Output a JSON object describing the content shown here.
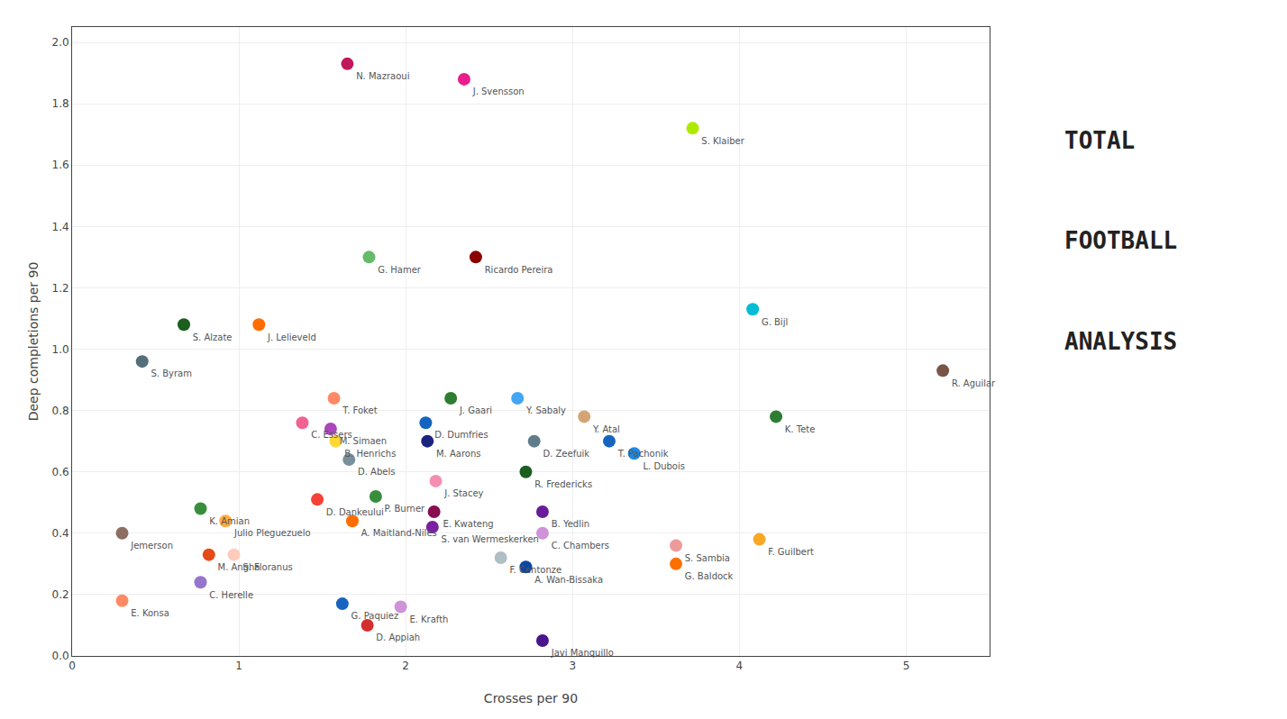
{
  "chart_data": {
    "type": "scatter",
    "xlabel": "Crosses per 90",
    "ylabel": "Deep completions per 90",
    "labels": [
      "N. Mazraoui",
      "J. Svensson",
      "S. Klaiber",
      "G. Hamer",
      "Ricardo Pereira",
      "S. Alzate",
      "J. Lelieveld",
      "S. Byram",
      "G. Bijl",
      "T. Foket",
      "C. Essers",
      "M. Simaen",
      "B. Henrichs",
      "D. Abels",
      "J. Gaari",
      "D. Dumfries",
      "M. Aarons",
      "J. Stacey",
      "E. Kwateng",
      "S. van Wermeskerken",
      "P. Burner",
      "D. Dankeului",
      "A. Maitland-Niles",
      "K. Amian",
      "Julio Pleguezuelo",
      "Jemerson",
      "M. Angha",
      "S. Floranus",
      "C. Herelle",
      "G. Paquiez",
      "E. Krafth",
      "D. Appiah",
      "E. Konsa",
      "Y. Sabaly",
      "Y. Atal",
      "D. Zeefuik",
      "T. Pachonik",
      "L. Dubois",
      "R. Fredericks",
      "B. Yedlin",
      "C. Chambers",
      "F. Centonze",
      "A. Wan-Bissaka",
      "Javi Manquillo",
      "S. Sambia",
      "G. Baldock",
      "K. Tete",
      "F. Guilbert",
      "R. Aguilar"
    ],
    "x": [
      1.65,
      2.35,
      3.72,
      1.78,
      2.42,
      0.67,
      1.12,
      0.42,
      4.08,
      1.57,
      1.38,
      1.55,
      1.58,
      1.66,
      2.27,
      2.12,
      2.13,
      2.18,
      2.17,
      2.16,
      1.82,
      1.47,
      1.68,
      0.77,
      0.92,
      0.3,
      0.82,
      0.97,
      0.77,
      1.62,
      1.97,
      1.77,
      0.3,
      2.67,
      3.07,
      2.77,
      3.22,
      3.37,
      2.72,
      2.82,
      2.82,
      2.57,
      2.72,
      2.82,
      3.62,
      3.62,
      4.22,
      4.12,
      5.22
    ],
    "values": [
      1.93,
      1.88,
      1.72,
      1.3,
      1.3,
      1.08,
      1.08,
      0.96,
      1.13,
      0.84,
      0.76,
      0.74,
      0.7,
      0.64,
      0.84,
      0.76,
      0.7,
      0.57,
      0.47,
      0.42,
      0.52,
      0.51,
      0.44,
      0.48,
      0.44,
      0.4,
      0.33,
      0.33,
      0.24,
      0.17,
      0.16,
      0.1,
      0.18,
      0.84,
      0.78,
      0.7,
      0.7,
      0.66,
      0.6,
      0.47,
      0.4,
      0.32,
      0.29,
      0.05,
      0.36,
      0.3,
      0.78,
      0.38,
      0.93
    ],
    "colors": [
      "#C2185B",
      "#E91E8C",
      "#AEEA00",
      "#66BB6A",
      "#8B0000",
      "#1B5E20",
      "#FF6D00",
      "#546E7A",
      "#00BCD4",
      "#FF8A65",
      "#F06292",
      "#AB47BC",
      "#FDD835",
      "#78909C",
      "#2E7D32",
      "#1565C0",
      "#1A237E",
      "#F48FB1",
      "#880E4F",
      "#7B1FA2",
      "#388E3C",
      "#F44336",
      "#FF6D00",
      "#388E3C",
      "#FFAB40",
      "#8D6E63",
      "#E64A19",
      "#FFCCBC",
      "#9575CD",
      "#1565C0",
      "#CE93D8",
      "#D32F2F",
      "#FF8A65",
      "#42A5F5",
      "#D4A574",
      "#607D8B",
      "#1565C0",
      "#1E88E5",
      "#1B5E20",
      "#6A1B9A",
      "#CE93D8",
      "#B0BEC5",
      "#0D47A1",
      "#4A148C",
      "#EF9A9A",
      "#FF6F00",
      "#2E7D32",
      "#F9A825",
      "#795548"
    ],
    "xlim": [
      0,
      5.5
    ],
    "ylim": [
      0,
      2.05
    ],
    "xticks": [
      0,
      1,
      2,
      3,
      4,
      5
    ],
    "yticks": [
      {
        "value": 0,
        "label": "0.0"
      },
      0.2,
      0.4,
      0.6,
      0.8,
      {
        "value": 1,
        "label": "1.0"
      },
      1.2,
      1.4,
      1.6,
      1.8,
      {
        "value": 2,
        "label": "2.0"
      }
    ],
    "grid": true,
    "annotations": [
      "TOTAL",
      "FOOTBALL",
      "ANALYSIS"
    ]
  }
}
